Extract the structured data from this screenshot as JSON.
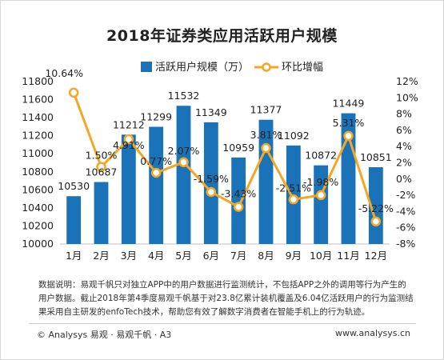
{
  "chart_data": {
    "type": "bar",
    "title": "2018年证券类应用活跃用户规模",
    "categories": [
      "1月",
      "2月",
      "3月",
      "4月",
      "5月",
      "6月",
      "7月",
      "8月",
      "9月",
      "10月",
      "11月",
      "12月"
    ],
    "series": [
      {
        "name": "活跃用户规模（万）",
        "type": "bar",
        "axis": "left",
        "color": "#1a73b8",
        "values": [
          10530,
          10687,
          11212,
          11299,
          11532,
          11349,
          10959,
          11377,
          11092,
          10872,
          11449,
          10851
        ],
        "labels": [
          "10530",
          "10687",
          "11212",
          "11299",
          "11532",
          "11349",
          "10959",
          "11377",
          "11092",
          "10872",
          "11449",
          "10851"
        ]
      },
      {
        "name": "环比增幅",
        "type": "line",
        "axis": "right",
        "color": "#f5a623",
        "values": [
          10.64,
          1.5,
          4.91,
          0.77,
          2.07,
          -1.59,
          -3.43,
          3.81,
          -2.51,
          -1.98,
          5.31,
          -5.22
        ],
        "labels": [
          "10.64%",
          "1.50%",
          "4.91%",
          "0.77%",
          "2.07%",
          "-1.59%",
          "-3.43%",
          "3.81%",
          "-2.51%",
          "-1.98%",
          "5.31%",
          "-5.22%"
        ]
      }
    ],
    "yleft": {
      "ylim": [
        10000,
        11800
      ],
      "ticks": [
        "10000",
        "10200",
        "10400",
        "10600",
        "10800",
        "11000",
        "11200",
        "11400",
        "11600",
        "11800"
      ]
    },
    "yright": {
      "ylim": [
        -8,
        12
      ],
      "ticks": [
        "-8%",
        "-6%",
        "-4%",
        "-2%",
        "0%",
        "2%",
        "4%",
        "6%",
        "8%",
        "10%",
        "12%"
      ]
    },
    "legend_position": "top-center",
    "grid": false
  },
  "note": "数据说明：易观千帆只对独立APP中的用户数据进行监测统计，不包括APP之外的调用等行为产生的用户数据。截止2018年第4季度易观千帆基于对23.8亿累计装机覆盖及6.04亿活跃用户的行为监测结果采用自主研发的enfoTech技术，帮助您有效了解数字消费者在智能手机上的行为轨迹。",
  "footer": {
    "left": "© Analysys 易观 · 易观千帆 · A3",
    "right": "www.analysys.cn"
  }
}
